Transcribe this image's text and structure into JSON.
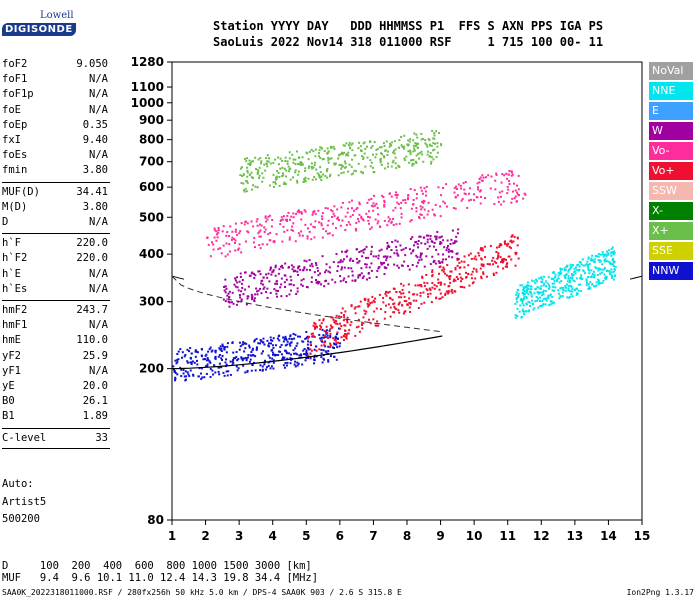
{
  "logo": {
    "line1": "Lowell",
    "line2": "DIGISONDE"
  },
  "header": {
    "line1": "Station YYYY DAY   DDD HHMMSS P1  FFS S AXN PPS IGA PS",
    "line2": "SaoLuis 2022 Nov14 318 011000 RSF     1 715 100 00- 11"
  },
  "params": [
    {
      "label": "foF2",
      "value": "9.050"
    },
    {
      "label": "foF1",
      "value": "N/A"
    },
    {
      "label": "foF1p",
      "value": "N/A"
    },
    {
      "label": "foE",
      "value": "N/A"
    },
    {
      "label": "foEp",
      "value": "0.35"
    },
    {
      "label": "fxI",
      "value": "9.40"
    },
    {
      "label": "foEs",
      "value": "N/A"
    },
    {
      "label": "fmin",
      "value": "3.80"
    },
    {
      "label": "MUF(D)",
      "value": "34.41"
    },
    {
      "label": "M(D)",
      "value": "3.80"
    },
    {
      "label": "D",
      "value": "N/A"
    },
    {
      "label": "h`F",
      "value": "220.0"
    },
    {
      "label": "h`F2",
      "value": "220.0"
    },
    {
      "label": "h`E",
      "value": "N/A"
    },
    {
      "label": "h`Es",
      "value": "N/A"
    },
    {
      "label": "hmF2",
      "value": "243.7"
    },
    {
      "label": "hmF1",
      "value": "N/A"
    },
    {
      "label": "hmE",
      "value": "110.0"
    },
    {
      "label": "yF2",
      "value": "25.9"
    },
    {
      "label": "yF1",
      "value": "N/A"
    },
    {
      "label": "yE",
      "value": "20.0"
    },
    {
      "label": "B0",
      "value": "26.1"
    },
    {
      "label": "B1",
      "value": "1.89"
    },
    {
      "label": "C-level",
      "value": "33"
    }
  ],
  "auto": {
    "line1": "Auto:",
    "line2": "Artist5",
    "line3": "500200"
  },
  "bottom": {
    "d_row": "D     100  200  400  600  800 1000 1500 3000 [km]",
    "muf_row": "MUF   9.4  9.6 10.1 11.0 12.4 14.3 19.8 34.4 [MHz]"
  },
  "footer": {
    "left": "SAA0K_2022318011000.RSF / 280fx256h 50 kHz 5.0 km / DPS-4 SAA0K 903 / 2.6 S 315.8 E",
    "right": "Ion2Png 1.3.17"
  },
  "legend": [
    {
      "label": "NoVal",
      "color": "#a0a0a0"
    },
    {
      "label": "NNE",
      "color": "#00e5ee"
    },
    {
      "label": "E",
      "color": "#3ea0ff"
    },
    {
      "label": "W",
      "color": "#a000a0"
    },
    {
      "label": "Vo-",
      "color": "#ff2d9b"
    },
    {
      "label": "Vo+",
      "color": "#ee1030"
    },
    {
      "label": "SSW",
      "color": "#f4b8b0"
    },
    {
      "label": "X-",
      "color": "#008000"
    },
    {
      "label": "X+",
      "color": "#6abf4b"
    },
    {
      "label": "SSE",
      "color": "#cfd000"
    },
    {
      "label": "NNW",
      "color": "#1010d0"
    }
  ],
  "chart_data": {
    "type": "scatter",
    "xlabel": "",
    "ylabel": "",
    "xlim": [
      1,
      15
    ],
    "ylim": [
      80,
      1280
    ],
    "yscale": "log",
    "xticks": [
      1,
      2,
      3,
      4,
      5,
      6,
      7,
      8,
      9,
      10,
      11,
      12,
      13,
      14,
      15
    ],
    "yticks": [
      80,
      200,
      300,
      400,
      500,
      600,
      700,
      800,
      900,
      1000,
      1100,
      1280
    ],
    "series": [
      {
        "name": "NNW",
        "traces": [
          {
            "f0": 1.0,
            "f1": 6.0,
            "h0": 205,
            "h1": 235
          }
        ]
      },
      {
        "name": "Vo+",
        "traces": [
          {
            "f0": 5.0,
            "f1": 11.3,
            "h0": 240,
            "h1": 420
          }
        ]
      },
      {
        "name": "NNE",
        "traces": [
          {
            "f0": 11.2,
            "f1": 14.2,
            "h0": 300,
            "h1": 385
          }
        ]
      },
      {
        "name": "Vo-",
        "traces": [
          {
            "f0": 2.0,
            "f1": 11.5,
            "h0": 430,
            "h1": 620
          }
        ]
      },
      {
        "name": "W",
        "traces": [
          {
            "f0": 2.5,
            "f1": 9.5,
            "h0": 320,
            "h1": 430
          }
        ]
      },
      {
        "name": "X+",
        "traces": [
          {
            "f0": 3.0,
            "f1": 9.0,
            "h0": 650,
            "h1": 780
          }
        ]
      }
    ],
    "profile_curve": {
      "f": [
        1.0,
        9.05
      ],
      "h": [
        200,
        243.7
      ]
    }
  }
}
